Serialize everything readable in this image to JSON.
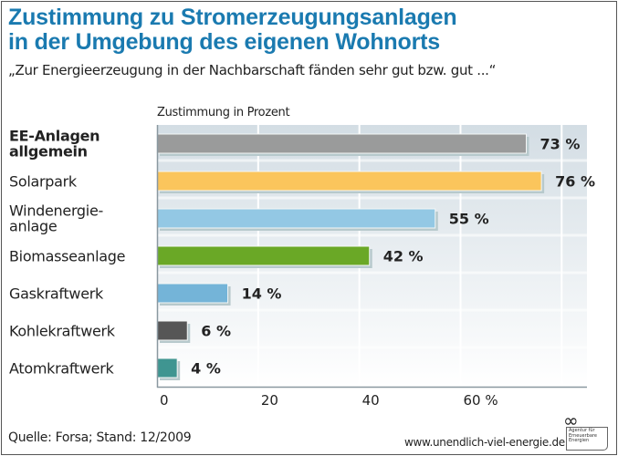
{
  "header": {
    "title_line1": "Zustimmung zu Stromerzeugungsanlagen",
    "title_line2": "in der Umgebung des eigenen Wohnorts",
    "subtitle": "„Zur Energieerzeugung in der Nachbarschaft fänden sehr gut bzw. gut ...“"
  },
  "footer": {
    "source": "Quelle: Forsa; Stand: 12/2009",
    "url": "www.unendlich-viel-energie.de",
    "logo_text": "Agentur für Erneuerbare Energien",
    "logo_symbol": "∞"
  },
  "chart_data": {
    "type": "bar",
    "orientation": "horizontal",
    "title": "Zustimmung zu Stromerzeugungsanlagen in der Umgebung des eigenen Wohnorts",
    "subtitle": "„Zur Energieerzeugung in der Nachbarschaft fänden sehr gut bzw. gut ...“",
    "xlabel": "Zustimmung in Prozent",
    "ylabel": "",
    "xlim": [
      0,
      85
    ],
    "grid": true,
    "legend": "none",
    "xticks": [
      {
        "value": 0,
        "label": "0"
      },
      {
        "value": 20,
        "label": "20"
      },
      {
        "value": 40,
        "label": "40"
      },
      {
        "value": 60,
        "label": "60 %"
      }
    ],
    "categories": [
      {
        "line1": "EE-Anlagen",
        "line2": "allgemein",
        "bold": true
      },
      {
        "line1": "Solarpark",
        "line2": ""
      },
      {
        "line1": "Windenergie-",
        "line2": "anlage"
      },
      {
        "line1": "Biomasseanlage",
        "line2": ""
      },
      {
        "line1": "Gaskraftwerk",
        "line2": ""
      },
      {
        "line1": "Kohlekraftwerk",
        "line2": ""
      },
      {
        "line1": "Atomkraftwerk",
        "line2": ""
      }
    ],
    "values": [
      73,
      76,
      55,
      42,
      14,
      6,
      4
    ],
    "value_labels": [
      "73 %",
      "76 %",
      "55 %",
      "42 %",
      "14 %",
      "6 %",
      "4 %"
    ],
    "colors": [
      "#9a9b9b",
      "#fbc55c",
      "#93c8e4",
      "#6aa826",
      "#74b4d8",
      "#565656",
      "#3f9591"
    ]
  }
}
